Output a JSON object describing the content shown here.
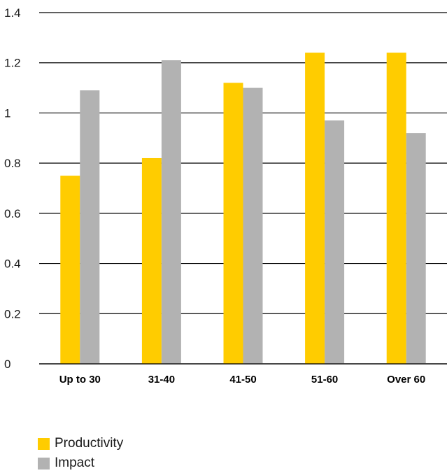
{
  "chart_data": {
    "type": "bar",
    "title": "",
    "xlabel": "",
    "ylabel": "",
    "ylim": [
      0,
      1.4
    ],
    "yticks": [
      "0",
      "0.2",
      "0.4",
      "0.6",
      "0.8",
      "1",
      "1.2",
      "1.4"
    ],
    "grid": true,
    "legend_position": "bottom-left",
    "categories": [
      "Up to 30",
      "31-40",
      "41-50",
      "51-60",
      "Over 60"
    ],
    "series": [
      {
        "name": "Productivity",
        "color": "#ffcc00",
        "values": [
          0.75,
          0.82,
          1.12,
          1.24,
          1.24
        ]
      },
      {
        "name": "Impact",
        "color": "#b2b2b2",
        "values": [
          1.09,
          1.21,
          1.1,
          0.97,
          0.92
        ]
      }
    ]
  },
  "legend": {
    "items": [
      {
        "label": "Productivity",
        "color": "#ffcc00"
      },
      {
        "label": "Impact",
        "color": "#b2b2b2"
      }
    ]
  }
}
